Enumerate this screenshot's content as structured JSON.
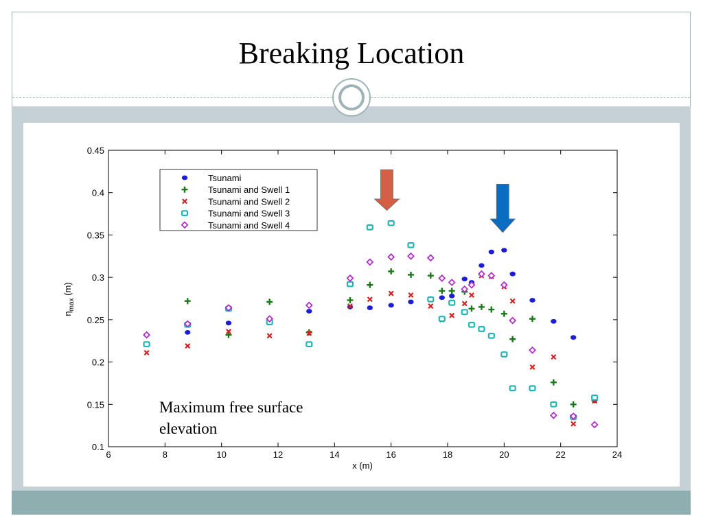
{
  "slide": {
    "title": "Breaking Location",
    "caption": "Maximum free surface\nelevation"
  },
  "theme": {
    "frame_color": "#9db3b6",
    "band_color": "#c6d1d5",
    "bottom_bar_color": "#8eaeb0"
  },
  "chart_data": {
    "type": "scatter",
    "title": "",
    "xlabel": "x (m)",
    "ylabel": "η_max (m)",
    "ylabel_parts": [
      "η",
      "max",
      " (m)"
    ],
    "xlim": [
      6,
      24
    ],
    "ylim": [
      0.1,
      0.45
    ],
    "xticks": [
      6,
      8,
      10,
      12,
      14,
      16,
      18,
      20,
      22,
      24
    ],
    "yticks": [
      0.1,
      0.15,
      0.2,
      0.25,
      0.3,
      0.35,
      0.4,
      0.45
    ],
    "ytick_labels": [
      "0.1",
      "0.15",
      "0.2",
      "0.25",
      "0.3",
      "0.35",
      "0.4",
      "0.45"
    ],
    "grid": false,
    "legend_position": "top-left",
    "series": [
      {
        "name": "Tsunami",
        "marker": "dot",
        "color": "#1d1dd6",
        "points": [
          [
            7.35,
            0.232
          ],
          [
            8.8,
            0.235
          ],
          [
            10.25,
            0.246
          ],
          [
            11.7,
            0.25
          ],
          [
            13.1,
            0.26
          ],
          [
            14.55,
            0.265
          ],
          [
            15.25,
            0.264
          ],
          [
            16.0,
            0.267
          ],
          [
            16.7,
            0.271
          ],
          [
            17.4,
            0.274
          ],
          [
            17.8,
            0.276
          ],
          [
            18.15,
            0.278
          ],
          [
            18.6,
            0.298
          ],
          [
            18.85,
            0.294
          ],
          [
            19.2,
            0.314
          ],
          [
            19.55,
            0.33
          ],
          [
            20.0,
            0.332
          ],
          [
            20.3,
            0.304
          ],
          [
            21.0,
            0.273
          ],
          [
            21.75,
            0.248
          ],
          [
            22.45,
            0.229
          ],
          [
            23.2,
            0.155
          ]
        ]
      },
      {
        "name": "Tsunami and Swell 1",
        "marker": "plus",
        "color": "#1a7a1a",
        "points": [
          [
            7.35,
            0.232
          ],
          [
            8.8,
            0.272
          ],
          [
            10.25,
            0.232
          ],
          [
            11.7,
            0.271
          ],
          [
            13.1,
            0.235
          ],
          [
            14.55,
            0.273
          ],
          [
            15.25,
            0.291
          ],
          [
            16.0,
            0.307
          ],
          [
            16.7,
            0.303
          ],
          [
            17.4,
            0.302
          ],
          [
            17.8,
            0.284
          ],
          [
            18.15,
            0.284
          ],
          [
            18.6,
            0.283
          ],
          [
            18.85,
            0.263
          ],
          [
            19.2,
            0.265
          ],
          [
            19.55,
            0.262
          ],
          [
            20.0,
            0.257
          ],
          [
            20.3,
            0.227
          ],
          [
            21.0,
            0.251
          ],
          [
            21.75,
            0.176
          ],
          [
            22.45,
            0.15
          ],
          [
            23.2,
            0.155
          ]
        ]
      },
      {
        "name": "Tsunami and Swell 2",
        "marker": "cross",
        "color": "#d42020",
        "points": [
          [
            7.35,
            0.211
          ],
          [
            8.8,
            0.219
          ],
          [
            10.25,
            0.236
          ],
          [
            11.7,
            0.231
          ],
          [
            13.1,
            0.234
          ],
          [
            14.55,
            0.266
          ],
          [
            15.25,
            0.274
          ],
          [
            16.0,
            0.281
          ],
          [
            16.7,
            0.279
          ],
          [
            17.4,
            0.266
          ],
          [
            17.8,
            0.25
          ],
          [
            18.15,
            0.255
          ],
          [
            18.6,
            0.269
          ],
          [
            18.85,
            0.279
          ],
          [
            19.2,
            0.302
          ],
          [
            19.55,
            0.301
          ],
          [
            20.0,
            0.289
          ],
          [
            20.3,
            0.272
          ],
          [
            21.0,
            0.194
          ],
          [
            21.75,
            0.206
          ],
          [
            22.45,
            0.127
          ],
          [
            23.2,
            0.154
          ]
        ]
      },
      {
        "name": "Tsunami and Swell 3",
        "marker": "square",
        "color": "#22b5b5",
        "points": [
          [
            7.35,
            0.221
          ],
          [
            8.8,
            0.244
          ],
          [
            10.25,
            0.263
          ],
          [
            11.7,
            0.247
          ],
          [
            13.1,
            0.221
          ],
          [
            14.55,
            0.292
          ],
          [
            15.25,
            0.359
          ],
          [
            16.0,
            0.364
          ],
          [
            16.7,
            0.338
          ],
          [
            17.4,
            0.274
          ],
          [
            17.8,
            0.251
          ],
          [
            18.15,
            0.27
          ],
          [
            18.6,
            0.259
          ],
          [
            18.85,
            0.244
          ],
          [
            19.2,
            0.239
          ],
          [
            19.55,
            0.231
          ],
          [
            20.0,
            0.209
          ],
          [
            20.3,
            0.169
          ],
          [
            21.0,
            0.169
          ],
          [
            21.75,
            0.15
          ],
          [
            22.45,
            0.135
          ],
          [
            23.2,
            0.158
          ]
        ]
      },
      {
        "name": "Tsunami and Swell 4",
        "marker": "diamond",
        "color": "#b030c8",
        "points": [
          [
            7.35,
            0.232
          ],
          [
            8.8,
            0.245
          ],
          [
            10.25,
            0.264
          ],
          [
            11.7,
            0.251
          ],
          [
            13.1,
            0.267
          ],
          [
            14.55,
            0.299
          ],
          [
            15.25,
            0.318
          ],
          [
            16.0,
            0.324
          ],
          [
            16.7,
            0.325
          ],
          [
            17.4,
            0.323
          ],
          [
            17.8,
            0.299
          ],
          [
            18.15,
            0.294
          ],
          [
            18.6,
            0.286
          ],
          [
            18.85,
            0.291
          ],
          [
            19.2,
            0.304
          ],
          [
            19.55,
            0.302
          ],
          [
            20.0,
            0.291
          ],
          [
            20.3,
            0.249
          ],
          [
            21.0,
            0.214
          ],
          [
            21.75,
            0.137
          ],
          [
            22.45,
            0.136
          ],
          [
            23.2,
            0.126
          ]
        ]
      }
    ],
    "annotations": [
      {
        "type": "arrow-down",
        "x": 15.85,
        "y_top": 0.427,
        "y_bottom": 0.379,
        "color": "#d45f45"
      },
      {
        "type": "arrow-down",
        "x": 19.95,
        "y_top": 0.41,
        "y_bottom": 0.353,
        "color": "#0a6dc2"
      }
    ]
  }
}
